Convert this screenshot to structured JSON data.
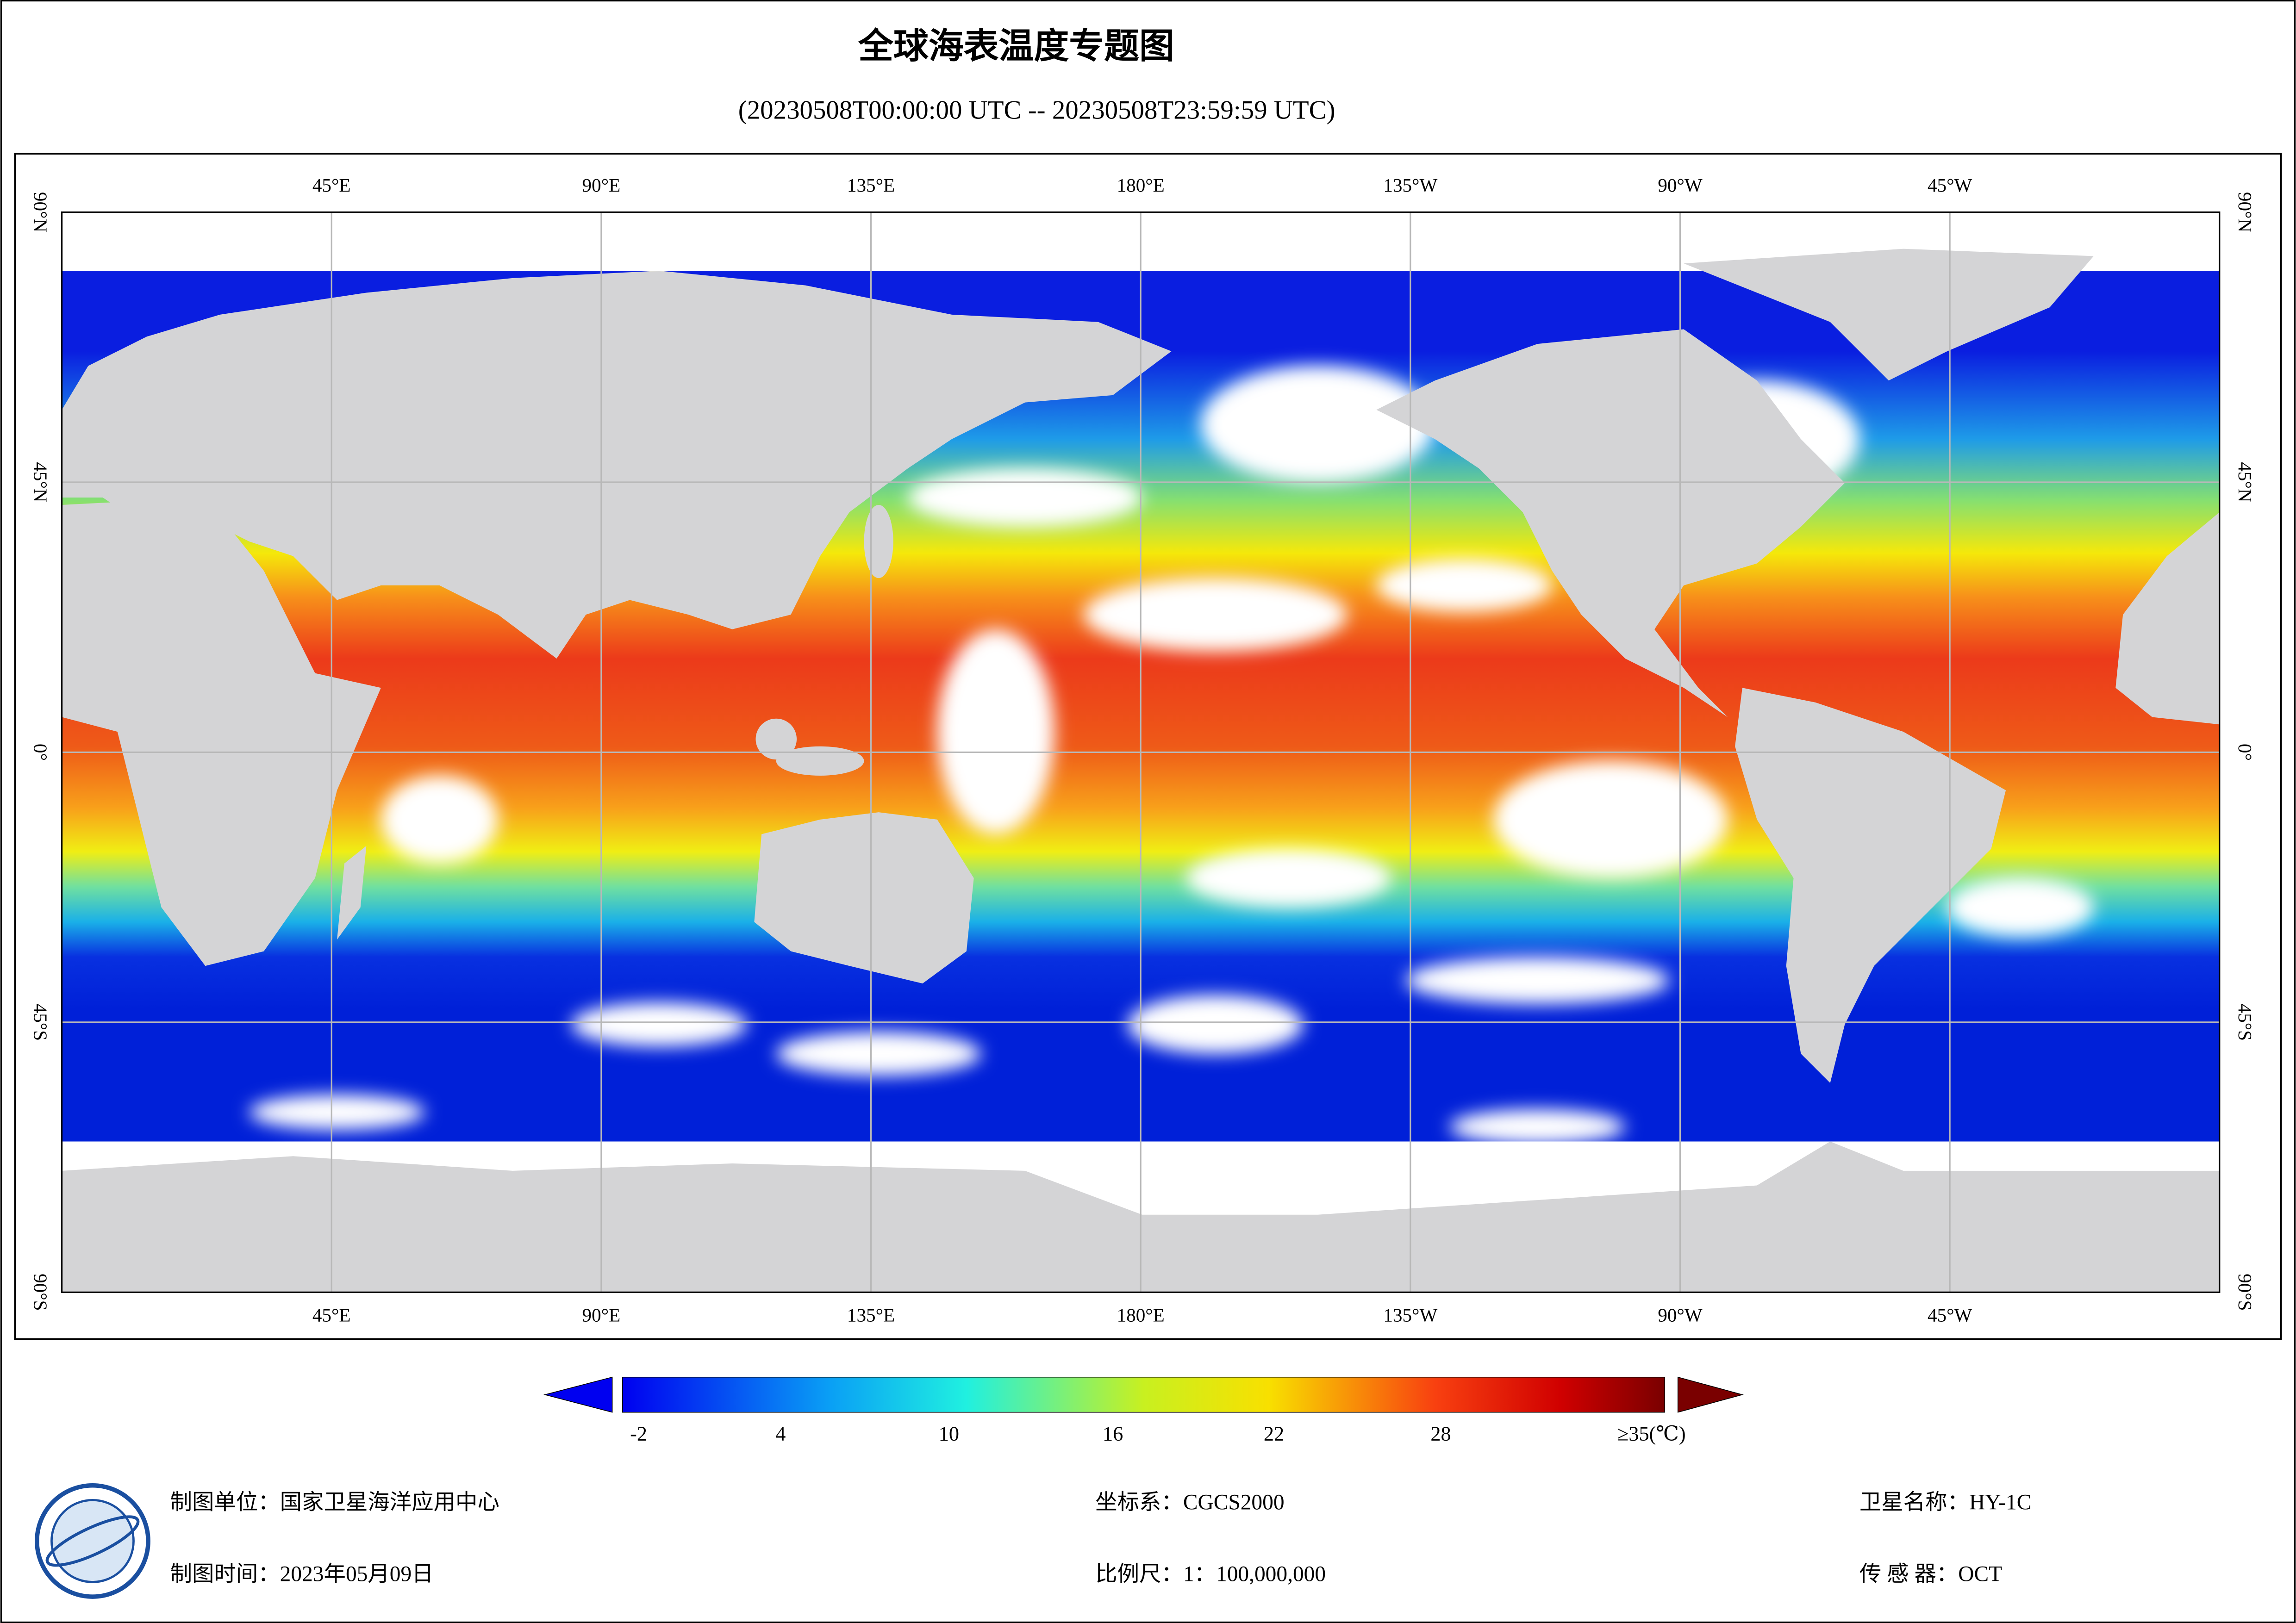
{
  "title": "全球海表温度专题图",
  "subtitle": "(20230508T00:00:00 UTC -- 20230508T23:59:59 UTC)",
  "map": {
    "longitude_labels": [
      "45°E",
      "90°E",
      "135°E",
      "180°E",
      "135°W",
      "90°W",
      "45°W"
    ],
    "latitude_labels": [
      "90°N",
      "45°N",
      "0°",
      "45°S",
      "90°S"
    ]
  },
  "colorbar": {
    "tick_labels": [
      "-2",
      "4",
      "10",
      "16",
      "22",
      "28"
    ],
    "max_label": "≥35(℃)"
  },
  "footer": {
    "producer": "制图单位：国家卫星海洋应用中心",
    "date": "制图时间：2023年05月09日",
    "coordinate_system": "坐标系：CGCS2000",
    "scale": "比例尺：1：100,000,000",
    "satellite": "卫星名称：HY-1C",
    "sensor": "传 感 器：OCT"
  }
}
